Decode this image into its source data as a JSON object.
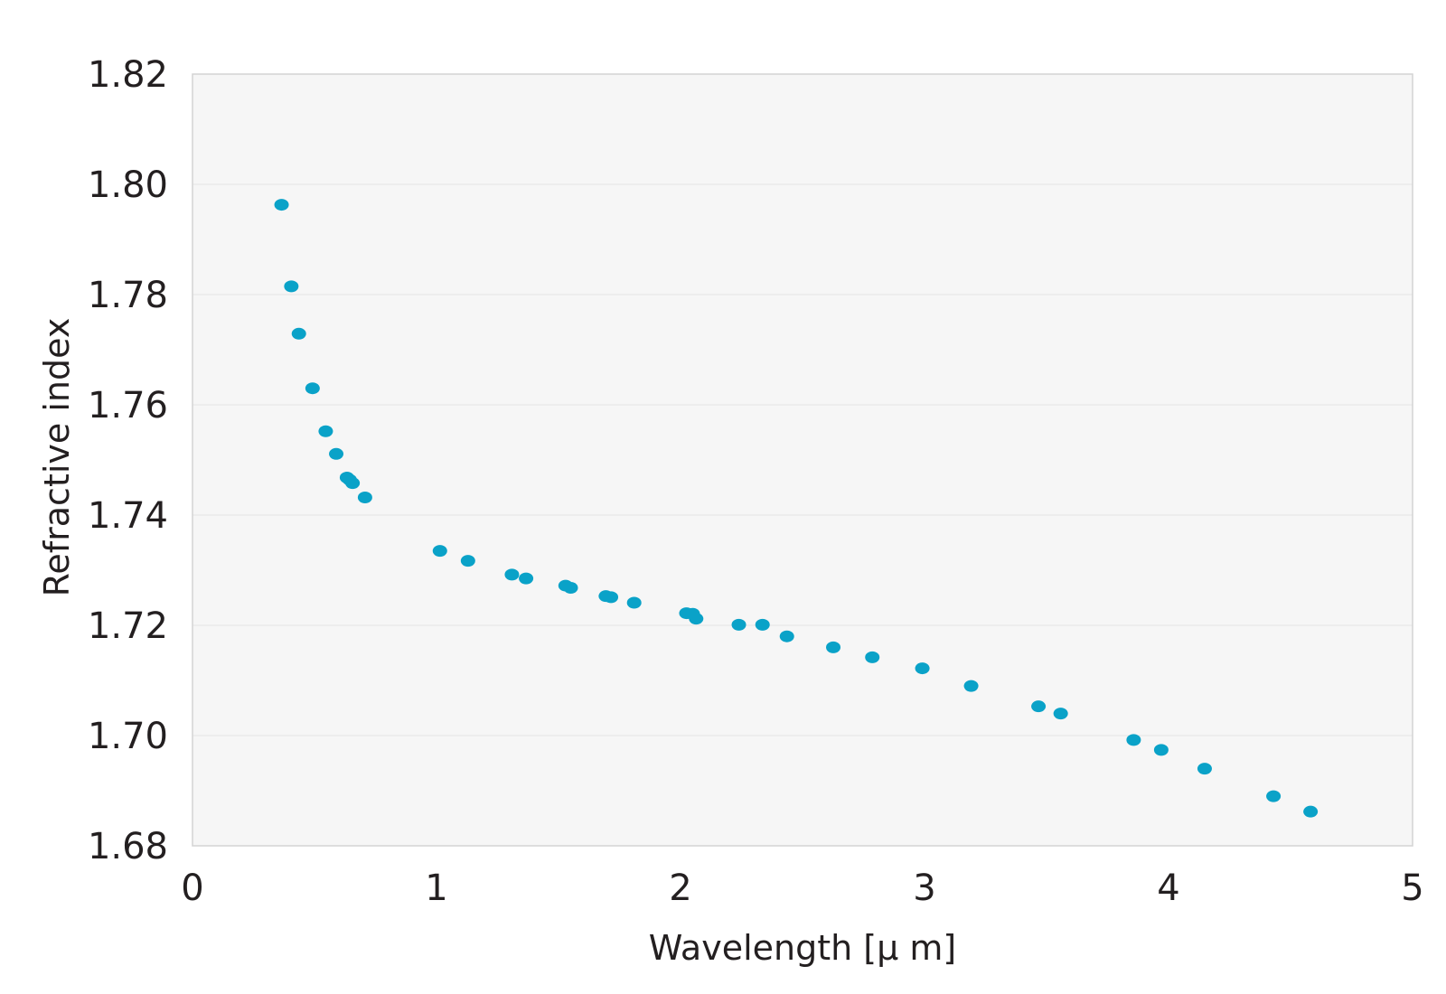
{
  "chart_data": {
    "type": "scatter",
    "title": "",
    "xlabel": "Wavelength [μ m]",
    "ylabel": "Refractive index",
    "xlim": [
      0,
      5
    ],
    "ylim": [
      1.68,
      1.82
    ],
    "x_ticks": [
      "0",
      "1",
      "2",
      "3",
      "4",
      "5"
    ],
    "y_ticks": [
      "1.68",
      "1.70",
      "1.72",
      "1.74",
      "1.76",
      "1.78",
      "1.80",
      "1.82"
    ],
    "grid": "horizontal",
    "legend": "none",
    "colors": {
      "marker": "#0aa2c8",
      "plot_background": "#f6f6f6",
      "grid": "#e4e4e4",
      "frame": "#d4d4d4"
    },
    "series": [
      {
        "x": [
          0.365,
          0.405,
          0.436,
          0.492,
          0.546,
          0.589,
          0.633,
          0.644,
          0.656,
          0.707,
          1.014,
          1.129,
          1.309,
          1.367,
          1.529,
          1.55,
          1.694,
          1.715,
          1.81,
          2.024,
          2.05,
          2.064,
          2.239,
          2.336,
          2.436,
          2.626,
          2.786,
          2.991,
          3.191,
          3.467,
          3.558,
          3.857,
          3.97,
          4.148,
          4.43,
          4.582
        ],
        "y": [
          1.7963,
          1.7815,
          1.7729,
          1.763,
          1.7552,
          1.7511,
          1.7468,
          1.7464,
          1.7458,
          1.7432,
          1.7335,
          1.7317,
          1.7292,
          1.7285,
          1.7272,
          1.7268,
          1.7253,
          1.7251,
          1.7241,
          1.7222,
          1.7221,
          1.7212,
          1.7201,
          1.7201,
          1.718,
          1.716,
          1.7142,
          1.7122,
          1.709,
          1.7053,
          1.704,
          1.6992,
          1.6974,
          1.694,
          1.689,
          1.6862
        ]
      }
    ]
  }
}
